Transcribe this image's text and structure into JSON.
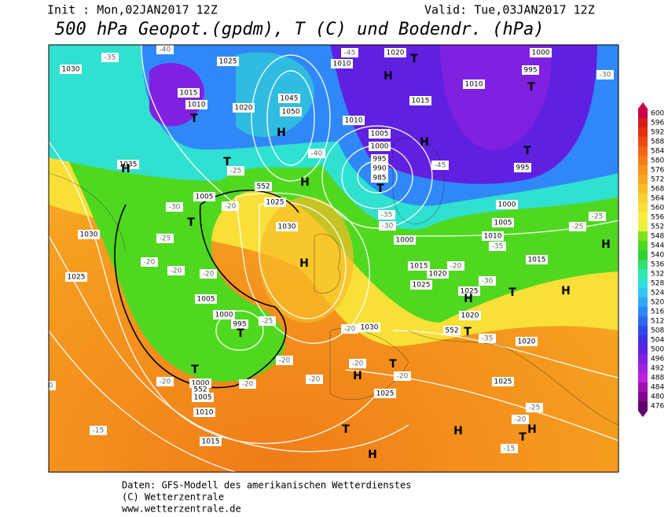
{
  "header": {
    "init": "Init : Mon,02JAN2017 12Z",
    "valid": "Valid: Tue,03JAN2017 12Z",
    "title": "500 hPa Geopot.(gpdm), T (C) und Bodendr. (hPa)"
  },
  "colorbar": {
    "ticks": [
      600,
      596,
      592,
      588,
      584,
      580,
      576,
      572,
      568,
      564,
      560,
      556,
      552,
      548,
      544,
      540,
      536,
      532,
      528,
      524,
      520,
      516,
      512,
      508,
      504,
      500,
      496,
      492,
      488,
      484,
      480,
      476
    ],
    "colors": [
      "#c8004a",
      "#d81a1a",
      "#e43010",
      "#ec4a10",
      "#f06414",
      "#f47c18",
      "#f6941c",
      "#f8a820",
      "#f8bc28",
      "#f8d030",
      "#f8e038",
      "#f8ee40",
      "#e8f040",
      "#80e020",
      "#50d820",
      "#30d030",
      "#30e070",
      "#30e8b0",
      "#30e0e0",
      "#30c8f0",
      "#30a8f8",
      "#3088f8",
      "#3068f0",
      "#3048e8",
      "#4030e0",
      "#6020e0",
      "#8020e0",
      "#a020e0",
      "#c020d8",
      "#a010b0",
      "#800890",
      "#600070"
    ]
  },
  "map": {
    "labels": [
      "1030",
      "1015",
      "1010",
      "1025",
      "1020",
      "1050",
      "1045",
      "1020",
      "1010",
      "1015",
      "1010",
      "1005",
      "1000",
      "995",
      "990",
      "985",
      "1010",
      "995",
      "1000",
      "995",
      "1035",
      "1005",
      "1025",
      "1030",
      "1030",
      "1025",
      "1005",
      "1000",
      "995",
      "1000",
      "1005",
      "1010",
      "1015",
      "1030",
      "1025",
      "1025",
      "1020",
      "1020",
      "1025",
      "1015",
      "1005",
      "1010",
      "1000",
      "1000",
      "1015",
      "1020",
      "1025",
      "552",
      "552",
      "552",
      "-25",
      "-30",
      "-25",
      "-20",
      "-20",
      "-20",
      "-20",
      "-35",
      "-40",
      "-45",
      "-45",
      "-40",
      "-35",
      "-30",
      "-30",
      "-25",
      "-25",
      "-30",
      "-35",
      "-25",
      "-20",
      "-15",
      "-15",
      "-20",
      "-20",
      "-20",
      "-20",
      "-20",
      "-20",
      "-20",
      "-25",
      "-20",
      "-20",
      "-35"
    ],
    "centers": [
      "H",
      "H",
      "H",
      "H",
      "H",
      "H",
      "H",
      "H",
      "H",
      "H",
      "H",
      "H",
      "H",
      "T",
      "T",
      "T",
      "T",
      "T",
      "T",
      "T",
      "T",
      "T",
      "T",
      "T",
      "T",
      "T",
      "T"
    ]
  },
  "footer": {
    "line1": "Daten: GFS-Modell des amerikanischen Wetterdienstes",
    "line2": "(C) Wetterzentrale",
    "line3": "www.wetterzentrale.de"
  }
}
